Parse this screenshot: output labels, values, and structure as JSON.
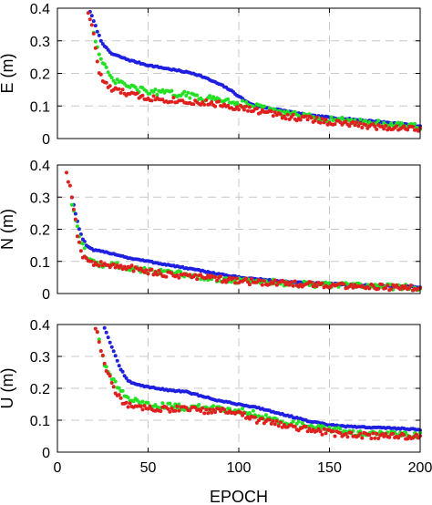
{
  "colors": {
    "blue": "#1f1fe0",
    "green": "#22e022",
    "red": "#e01f1f",
    "grid": "#c8c8c8",
    "axis": "#000000"
  },
  "chart_data": [
    {
      "type": "scatter",
      "ylabel": "E (m)",
      "xlabel": "",
      "xlim": [
        0,
        200
      ],
      "ylim": [
        0,
        0.4
      ],
      "xticks": [],
      "yticks": [
        "0",
        "0.1",
        "0.2",
        "0.3",
        "0.4"
      ],
      "grid": true,
      "series": [
        {
          "color": "blue",
          "points": [
            [
              18,
              0.39
            ],
            [
              20,
              0.36
            ],
            [
              22,
              0.33
            ],
            [
              24,
              0.3
            ],
            [
              26,
              0.285
            ],
            [
              28,
              0.27
            ],
            [
              30,
              0.26
            ],
            [
              35,
              0.25
            ],
            [
              40,
              0.24
            ],
            [
              50,
              0.225
            ],
            [
              60,
              0.215
            ],
            [
              70,
              0.205
            ],
            [
              75,
              0.2
            ],
            [
              80,
              0.19
            ],
            [
              90,
              0.165
            ],
            [
              95,
              0.15
            ],
            [
              100,
              0.13
            ],
            [
              105,
              0.11
            ],
            [
              110,
              0.1
            ],
            [
              120,
              0.09
            ],
            [
              130,
              0.08
            ],
            [
              140,
              0.07
            ],
            [
              150,
              0.065
            ],
            [
              160,
              0.06
            ],
            [
              170,
              0.055
            ],
            [
              180,
              0.05
            ],
            [
              190,
              0.045
            ],
            [
              200,
              0.038
            ]
          ]
        },
        {
          "color": "green",
          "points": [
            [
              20,
              0.33
            ],
            [
              22,
              0.28
            ],
            [
              24,
              0.24
            ],
            [
              26,
              0.22
            ],
            [
              28,
              0.2
            ],
            [
              30,
              0.18
            ],
            [
              35,
              0.17
            ],
            [
              40,
              0.16
            ],
            [
              45,
              0.15
            ],
            [
              50,
              0.145
            ],
            [
              60,
              0.14
            ],
            [
              70,
              0.135
            ],
            [
              75,
              0.13
            ],
            [
              80,
              0.125
            ],
            [
              90,
              0.12
            ],
            [
              100,
              0.11
            ],
            [
              110,
              0.1
            ],
            [
              120,
              0.08
            ],
            [
              130,
              0.075
            ],
            [
              140,
              0.065
            ],
            [
              150,
              0.06
            ],
            [
              160,
              0.055
            ],
            [
              170,
              0.05
            ],
            [
              180,
              0.045
            ],
            [
              190,
              0.04
            ],
            [
              200,
              0.035
            ]
          ]
        },
        {
          "color": "red",
          "points": [
            [
              17,
              0.39
            ],
            [
              19,
              0.35
            ],
            [
              21,
              0.28
            ],
            [
              23,
              0.2
            ],
            [
              25,
              0.18
            ],
            [
              28,
              0.16
            ],
            [
              30,
              0.15
            ],
            [
              35,
              0.145
            ],
            [
              40,
              0.135
            ],
            [
              50,
              0.125
            ],
            [
              60,
              0.12
            ],
            [
              70,
              0.115
            ],
            [
              80,
              0.11
            ],
            [
              90,
              0.105
            ],
            [
              100,
              0.095
            ],
            [
              110,
              0.085
            ],
            [
              120,
              0.075
            ],
            [
              130,
              0.065
            ],
            [
              140,
              0.06
            ],
            [
              150,
              0.05
            ],
            [
              160,
              0.045
            ],
            [
              170,
              0.04
            ],
            [
              180,
              0.035
            ],
            [
              190,
              0.033
            ],
            [
              200,
              0.03
            ]
          ]
        }
      ]
    },
    {
      "type": "scatter",
      "ylabel": "N (m)",
      "xlabel": "",
      "xlim": [
        0,
        200
      ],
      "ylim": [
        0,
        0.4
      ],
      "xticks": [],
      "yticks": [
        "0",
        "0.1",
        "0.2",
        "0.3",
        "0.4"
      ],
      "grid": true,
      "series": [
        {
          "color": "blue",
          "points": [
            [
              8,
              0.3
            ],
            [
              10,
              0.25
            ],
            [
              12,
              0.2
            ],
            [
              14,
              0.17
            ],
            [
              16,
              0.15
            ],
            [
              18,
              0.14
            ],
            [
              20,
              0.135
            ],
            [
              25,
              0.13
            ],
            [
              30,
              0.125
            ],
            [
              40,
              0.11
            ],
            [
              50,
              0.1
            ],
            [
              60,
              0.09
            ],
            [
              70,
              0.08
            ],
            [
              80,
              0.07
            ],
            [
              90,
              0.06
            ],
            [
              100,
              0.05
            ],
            [
              110,
              0.045
            ],
            [
              120,
              0.04
            ],
            [
              130,
              0.035
            ],
            [
              140,
              0.032
            ],
            [
              150,
              0.03
            ],
            [
              160,
              0.028
            ],
            [
              170,
              0.026
            ],
            [
              180,
              0.024
            ],
            [
              190,
              0.022
            ],
            [
              200,
              0.02
            ]
          ]
        },
        {
          "color": "green",
          "points": [
            [
              8,
              0.28
            ],
            [
              10,
              0.22
            ],
            [
              12,
              0.18
            ],
            [
              14,
              0.15
            ],
            [
              16,
              0.12
            ],
            [
              18,
              0.1
            ],
            [
              20,
              0.095
            ],
            [
              25,
              0.09
            ],
            [
              30,
              0.09
            ],
            [
              35,
              0.085
            ],
            [
              40,
              0.08
            ],
            [
              45,
              0.075
            ],
            [
              50,
              0.07
            ],
            [
              60,
              0.065
            ],
            [
              70,
              0.06
            ],
            [
              80,
              0.05
            ],
            [
              90,
              0.045
            ],
            [
              100,
              0.04
            ],
            [
              110,
              0.038
            ],
            [
              120,
              0.035
            ],
            [
              130,
              0.03
            ],
            [
              140,
              0.028
            ],
            [
              150,
              0.026
            ],
            [
              160,
              0.025
            ],
            [
              170,
              0.024
            ],
            [
              180,
              0.022
            ],
            [
              190,
              0.02
            ],
            [
              200,
              0.018
            ]
          ]
        },
        {
          "color": "red",
          "points": [
            [
              5,
              0.38
            ],
            [
              7,
              0.33
            ],
            [
              9,
              0.27
            ],
            [
              11,
              0.18
            ],
            [
              13,
              0.13
            ],
            [
              15,
              0.11
            ],
            [
              17,
              0.1
            ],
            [
              20,
              0.095
            ],
            [
              25,
              0.09
            ],
            [
              30,
              0.085
            ],
            [
              40,
              0.08
            ],
            [
              50,
              0.07
            ],
            [
              60,
              0.06
            ],
            [
              70,
              0.055
            ],
            [
              80,
              0.05
            ],
            [
              90,
              0.045
            ],
            [
              100,
              0.04
            ],
            [
              110,
              0.035
            ],
            [
              120,
              0.033
            ],
            [
              130,
              0.03
            ],
            [
              140,
              0.028
            ],
            [
              150,
              0.026
            ],
            [
              160,
              0.024
            ],
            [
              170,
              0.022
            ],
            [
              180,
              0.02
            ],
            [
              190,
              0.018
            ],
            [
              200,
              0.016
            ]
          ]
        }
      ]
    },
    {
      "type": "scatter",
      "ylabel": "U (m)",
      "xlabel": "EPOCH",
      "xlim": [
        0,
        200
      ],
      "ylim": [
        0,
        0.4
      ],
      "xticks": [
        "0",
        "50",
        "100",
        "150",
        "200"
      ],
      "yticks": [
        "0",
        "0.1",
        "0.2",
        "0.3",
        "0.4"
      ],
      "grid": true,
      "series": [
        {
          "color": "blue",
          "points": [
            [
              26,
              0.39
            ],
            [
              28,
              0.36
            ],
            [
              30,
              0.33
            ],
            [
              32,
              0.3
            ],
            [
              34,
              0.27
            ],
            [
              36,
              0.25
            ],
            [
              38,
              0.23
            ],
            [
              40,
              0.22
            ],
            [
              45,
              0.21
            ],
            [
              50,
              0.205
            ],
            [
              60,
              0.195
            ],
            [
              70,
              0.19
            ],
            [
              80,
              0.175
            ],
            [
              90,
              0.16
            ],
            [
              100,
              0.15
            ],
            [
              110,
              0.14
            ],
            [
              120,
              0.125
            ],
            [
              130,
              0.11
            ],
            [
              140,
              0.095
            ],
            [
              150,
              0.085
            ],
            [
              160,
              0.08
            ],
            [
              170,
              0.078
            ],
            [
              180,
              0.076
            ],
            [
              190,
              0.074
            ],
            [
              200,
              0.07
            ]
          ]
        },
        {
          "color": "green",
          "points": [
            [
              22,
              0.38
            ],
            [
              24,
              0.32
            ],
            [
              26,
              0.28
            ],
            [
              28,
              0.25
            ],
            [
              30,
              0.23
            ],
            [
              35,
              0.19
            ],
            [
              40,
              0.165
            ],
            [
              45,
              0.155
            ],
            [
              50,
              0.15
            ],
            [
              60,
              0.145
            ],
            [
              70,
              0.14
            ],
            [
              80,
              0.14
            ],
            [
              90,
              0.135
            ],
            [
              100,
              0.13
            ],
            [
              110,
              0.12
            ],
            [
              120,
              0.1
            ],
            [
              130,
              0.09
            ],
            [
              140,
              0.08
            ],
            [
              150,
              0.07
            ],
            [
              160,
              0.065
            ],
            [
              165,
              0.06
            ],
            [
              170,
              0.058
            ],
            [
              180,
              0.056
            ],
            [
              190,
              0.055
            ],
            [
              200,
              0.055
            ]
          ]
        },
        {
          "color": "red",
          "points": [
            [
              21,
              0.39
            ],
            [
              23,
              0.35
            ],
            [
              25,
              0.3
            ],
            [
              27,
              0.26
            ],
            [
              29,
              0.23
            ],
            [
              31,
              0.2
            ],
            [
              33,
              0.18
            ],
            [
              36,
              0.155
            ],
            [
              40,
              0.145
            ],
            [
              50,
              0.14
            ],
            [
              60,
              0.135
            ],
            [
              70,
              0.135
            ],
            [
              80,
              0.13
            ],
            [
              90,
              0.13
            ],
            [
              100,
              0.12
            ],
            [
              110,
              0.1
            ],
            [
              120,
              0.09
            ],
            [
              130,
              0.08
            ],
            [
              140,
              0.07
            ],
            [
              150,
              0.06
            ],
            [
              160,
              0.055
            ],
            [
              170,
              0.052
            ],
            [
              180,
              0.05
            ],
            [
              190,
              0.05
            ],
            [
              200,
              0.05
            ]
          ]
        }
      ]
    }
  ]
}
